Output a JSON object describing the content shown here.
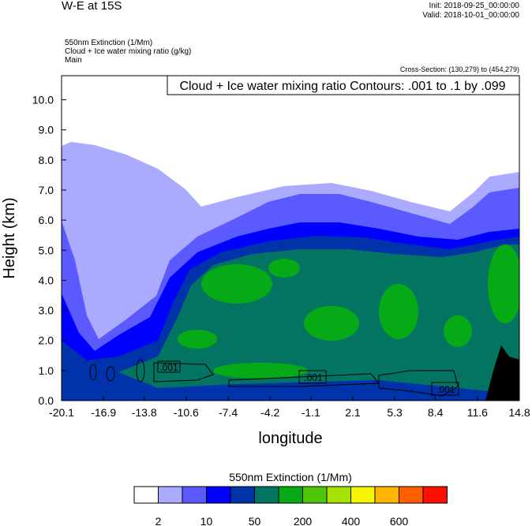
{
  "header": {
    "title": "W-E at 15S",
    "init": "Init: 2018-09-25_00:00:00",
    "valid": "Valid: 2018-10-01_00:00:00",
    "fields": [
      "550nm Extinction   (1/Mm)",
      "Cloud + Ice water mixing ratio   (g/kg)",
      "Main"
    ],
    "cross_section": "Cross-Section: (130,279) to (454,279)"
  },
  "chart_data": {
    "type": "contour",
    "title": "W-E at 15S",
    "contour_label": "Cloud + Ice water mixing ratio Contours: .001 to .1 by .099",
    "contour_line_labels": [
      ".001",
      ".001",
      ".001"
    ],
    "xlabel": "longitude",
    "ylabel": "Height (km)",
    "xlim": [
      -20.1,
      14.8
    ],
    "ylim": [
      0,
      10.8
    ],
    "xticks": [
      "-20.1",
      "-16.9",
      "-13.8",
      "-10.6",
      "-7.4",
      "-4.2",
      "-1.1",
      "2.1",
      "5.3",
      "8.4",
      "11.6",
      "14.8"
    ],
    "yticks": [
      "0.0",
      "1.0",
      "2.0",
      "3.0",
      "4.0",
      "5.0",
      "6.0",
      "7.0",
      "8.0",
      "9.0",
      "10.0"
    ],
    "colorbar": {
      "title": "550nm Extinction  (1/Mm)",
      "labels": [
        "2",
        "10",
        "50",
        "200",
        "400",
        "600"
      ],
      "colors": [
        "#ffffff",
        "#aaaaff",
        "#5a5aff",
        "#0000ff",
        "#0033aa",
        "#037362",
        "#06aa17",
        "#50c60a",
        "#a8e200",
        "#f5f500",
        "#ffb400",
        "#ff5f00",
        "#ff0f00"
      ]
    }
  }
}
